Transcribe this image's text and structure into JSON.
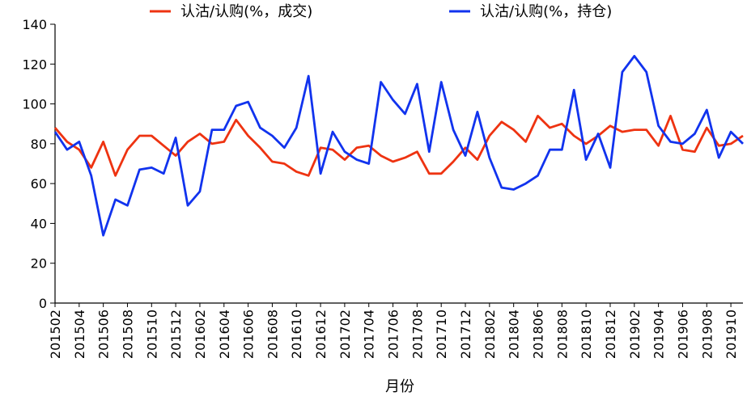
{
  "chart_data": {
    "type": "line",
    "title": "",
    "xlabel": "月份",
    "ylabel": "",
    "ylim": [
      0,
      140
    ],
    "yticks": [
      0,
      20,
      40,
      60,
      80,
      100,
      120,
      140
    ],
    "grid": false,
    "legend_position": "top",
    "x": [
      "201502",
      "201503",
      "201504",
      "201505",
      "201506",
      "201507",
      "201508",
      "201509",
      "201510",
      "201511",
      "201512",
      "201601",
      "201602",
      "201603",
      "201604",
      "201605",
      "201606",
      "201607",
      "201608",
      "201609",
      "201610",
      "201611",
      "201612",
      "201701",
      "201702",
      "201703",
      "201704",
      "201705",
      "201706",
      "201707",
      "201708",
      "201709",
      "201710",
      "201711",
      "201712",
      "201801",
      "201802",
      "201803",
      "201804",
      "201805",
      "201806",
      "201807",
      "201808",
      "201809",
      "201810",
      "201811",
      "201812",
      "201901",
      "201902",
      "201903",
      "201904",
      "201905",
      "201906",
      "201907",
      "201908",
      "201909",
      "201910",
      "201911"
    ],
    "x_tick_labels": [
      "201502",
      "201504",
      "201506",
      "201508",
      "201510",
      "201512",
      "201602",
      "201604",
      "201606",
      "201608",
      "201610",
      "201612",
      "201702",
      "201704",
      "201706",
      "201708",
      "201710",
      "201712",
      "201802",
      "201804",
      "201806",
      "201808",
      "201810",
      "201812",
      "201902",
      "201904",
      "201906",
      "201908",
      "201910"
    ],
    "series": [
      {
        "name": "认沽/认购(%，成交)",
        "color": "#ee3311",
        "values": [
          88,
          81,
          77,
          68,
          81,
          64,
          77,
          84,
          84,
          79,
          74,
          81,
          85,
          80,
          81,
          92,
          84,
          78,
          71,
          70,
          66,
          64,
          78,
          77,
          72,
          78,
          79,
          74,
          71,
          73,
          76,
          65,
          65,
          71,
          78,
          72,
          84,
          91,
          87,
          81,
          94,
          88,
          90,
          84,
          80,
          84,
          89,
          86,
          87,
          87,
          79,
          94,
          77,
          76,
          88,
          79,
          80,
          84
        ],
        "_note": ""
      },
      {
        "name": "认沽/认购(%，持仓)",
        "color": "#1133ee",
        "values": [
          86,
          77,
          81,
          64,
          34,
          52,
          49,
          67,
          68,
          65,
          83,
          49,
          56,
          87,
          87,
          99,
          101,
          88,
          84,
          78,
          88,
          114,
          65,
          86,
          76,
          72,
          70,
          111,
          102,
          95,
          110,
          76,
          111,
          87,
          74,
          96,
          73,
          58,
          57,
          60,
          64,
          77,
          77,
          107,
          72,
          85,
          68,
          116,
          124,
          116,
          89,
          81,
          80,
          85,
          97,
          73,
          86,
          80
        ]
      }
    ]
  }
}
